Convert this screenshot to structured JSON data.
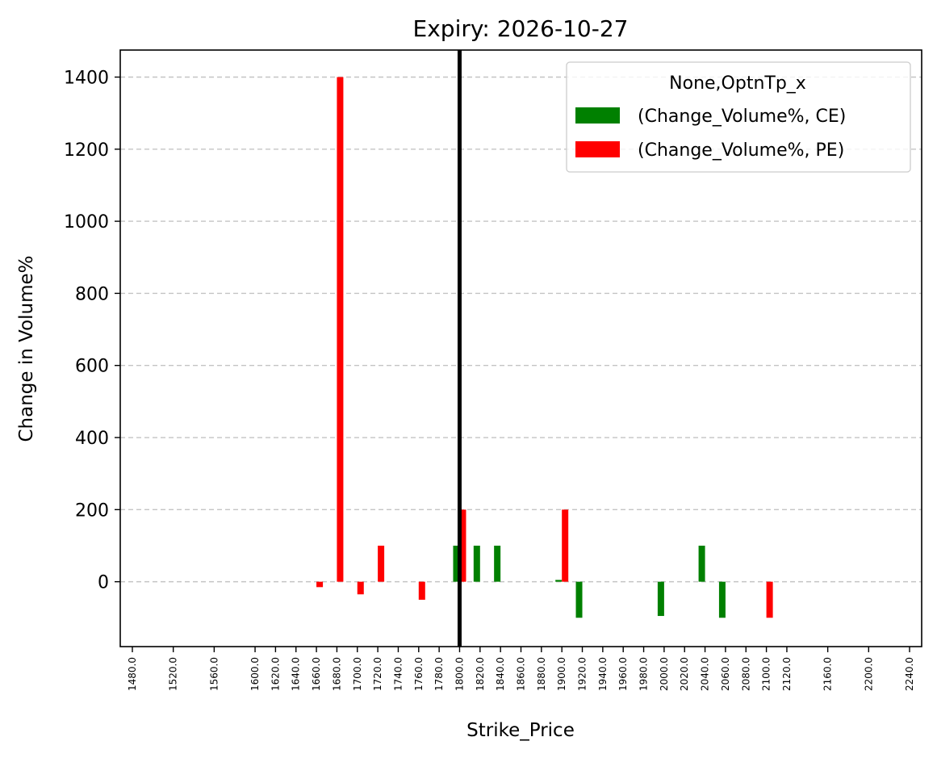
{
  "chart_data": {
    "type": "bar",
    "title": "Expiry: 2026-10-27",
    "xlabel": "Strike_Price",
    "ylabel": "Change in Volume%",
    "categories": [
      "1480.0",
      "1500.0",
      "1520.0",
      "1540.0",
      "1560.0",
      "1580.0",
      "1600.0",
      "1620.0",
      "1640.0",
      "1660.0",
      "1680.0",
      "1700.0",
      "1720.0",
      "1740.0",
      "1760.0",
      "1780.0",
      "1800.0",
      "1820.0",
      "1840.0",
      "1860.0",
      "1880.0",
      "1900.0",
      "1920.0",
      "1940.0",
      "1960.0",
      "1980.0",
      "2000.0",
      "2020.0",
      "2040.0",
      "2060.0",
      "2080.0",
      "2100.0",
      "2120.0",
      "2140.0",
      "2160.0",
      "2180.0",
      "2200.0",
      "2220.0",
      "2240.0"
    ],
    "tick_labels": [
      "1480.0",
      "1520.0",
      "1560.0",
      "1600.0",
      "1620.0",
      "1640.0",
      "1660.0",
      "1680.0",
      "1700.0",
      "1720.0",
      "1740.0",
      "1760.0",
      "1780.0",
      "1800.0",
      "1820.0",
      "1840.0",
      "1860.0",
      "1880.0",
      "1900.0",
      "1920.0",
      "1940.0",
      "1960.0",
      "1980.0",
      "2000.0",
      "2020.0",
      "2040.0",
      "2060.0",
      "2080.0",
      "2100.0",
      "2120.0",
      "2160.0",
      "2200.0",
      "2240.0"
    ],
    "series": [
      {
        "name": "(Change_Volume%, CE)",
        "color": "#008000",
        "values": [
          0,
          0,
          0,
          0,
          0,
          0,
          0,
          0,
          0,
          0,
          0,
          0,
          0,
          0,
          0,
          0,
          100,
          100,
          100,
          0,
          0,
          5,
          -100,
          0,
          0,
          0,
          -95,
          0,
          100,
          -100,
          0,
          0,
          0,
          0,
          0,
          0,
          0,
          0,
          0
        ]
      },
      {
        "name": "(Change_Volume%, PE)",
        "color": "#ff0000",
        "values": [
          0,
          0,
          0,
          0,
          0,
          0,
          0,
          0,
          0,
          -15,
          1400,
          -35,
          100,
          0,
          -50,
          0,
          200,
          0,
          0,
          0,
          0,
          200,
          0,
          0,
          0,
          0,
          0,
          0,
          0,
          0,
          0,
          -100,
          0,
          0,
          0,
          0,
          0,
          0,
          0
        ]
      }
    ],
    "yticks": [
      0,
      200,
      400,
      600,
      800,
      1000,
      1200,
      1400
    ],
    "ylim": [
      -180,
      1475
    ],
    "grid": "y-dashed",
    "vline": {
      "x": "1800.0",
      "color": "#000000"
    },
    "legend": {
      "title": "None,OptnTp_x",
      "placement": "top-right"
    }
  }
}
